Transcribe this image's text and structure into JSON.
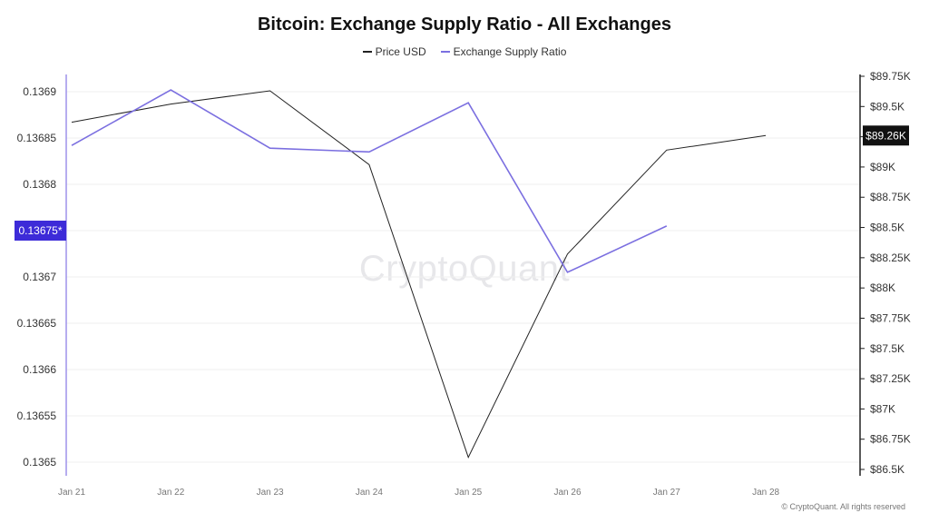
{
  "title": "Bitcoin: Exchange Supply Ratio - All Exchanges",
  "watermark": "CryptoQuant",
  "copyright": "© CryptoQuant. All rights reserved",
  "legend": [
    {
      "label": "Price USD",
      "color": "#222222"
    },
    {
      "label": "Exchange Supply Ratio",
      "color": "#7b6fe0"
    }
  ],
  "badges": {
    "left": {
      "label": "0.13675*",
      "value": 0.13675,
      "color": "#3d2bd8"
    },
    "right": {
      "label": "$89.26K",
      "value": 89260,
      "color": "#111111"
    }
  },
  "chart_data": {
    "type": "line",
    "title": "Bitcoin: Exchange Supply Ratio - All Exchanges",
    "x": [
      "Jan 21",
      "Jan 22",
      "Jan 23",
      "Jan 24",
      "Jan 25",
      "Jan 26",
      "Jan 27",
      "Jan 28"
    ],
    "series": [
      {
        "name": "Price USD",
        "axis": "right",
        "color": "#222222",
        "values": [
          89370,
          89520,
          89630,
          89020,
          86600,
          88280,
          89140,
          89260
        ]
      },
      {
        "name": "Exchange Supply Ratio",
        "axis": "left",
        "color": "#7b6fe0",
        "values": [
          0.136842,
          0.136902,
          0.136839,
          0.136835,
          0.136888,
          0.136705,
          0.136755,
          null
        ]
      }
    ],
    "y_left": {
      "ylim": [
        0.1365,
        0.1369
      ],
      "ticks": [
        0.1365,
        0.13655,
        0.1366,
        0.13665,
        0.1367,
        0.13675,
        0.1368,
        0.13685,
        0.1369
      ],
      "tick_labels": [
        "0.1365",
        "0.13655",
        "0.1366",
        "0.13665",
        "0.1367",
        "",
        "0.1368",
        "0.13685",
        "0.1369"
      ]
    },
    "y_right": {
      "ylim": [
        86500,
        89750
      ],
      "ticks": [
        86500,
        86750,
        87000,
        87250,
        87500,
        87750,
        88000,
        88250,
        88500,
        88750,
        89000,
        89250,
        89500,
        89750
      ],
      "tick_labels": [
        "$86.5K",
        "$86.75K",
        "$87K",
        "$87.25K",
        "$87.5K",
        "$87.75K",
        "$88K",
        "$88.25K",
        "$88.5K",
        "$88.75K",
        "$89K",
        "",
        "$89.5K",
        "$89.75K"
      ]
    },
    "grid": true
  }
}
